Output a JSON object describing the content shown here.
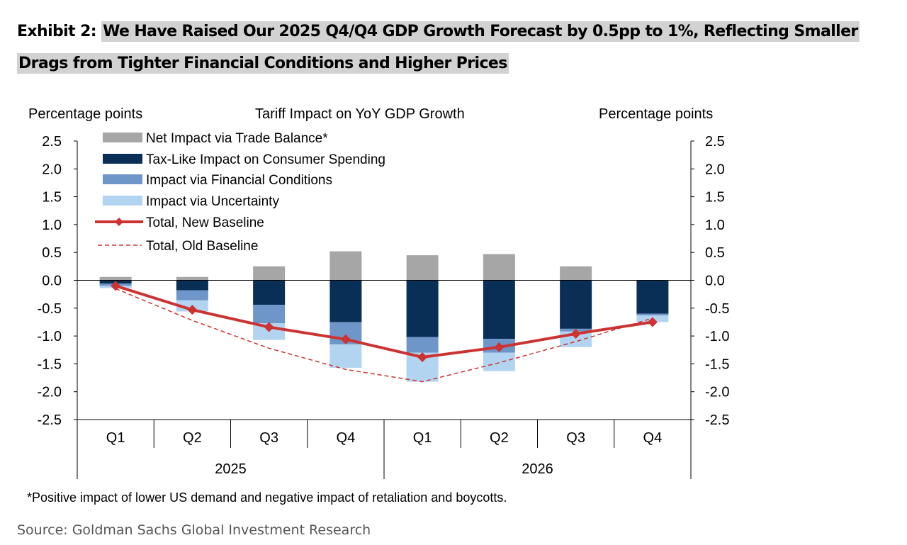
{
  "title": {
    "prefix": "Exhibit 2:",
    "text": "We Have Raised Our 2025 Q4/Q4 GDP Growth Forecast by 0.5pp to 1%, Reflecting Smaller Drags from Tighter Financial Conditions and Higher Prices"
  },
  "footnote": "*Positive impact of lower US demand and negative impact of retaliation and boycotts.",
  "source": "Source: Goldman Sachs Global Investment Research",
  "chart_data": {
    "type": "bar",
    "title": "Tariff Impact on YoY GDP Growth",
    "ylabel_left": "Percentage points",
    "ylabel_right": "Percentage points",
    "ylim": [
      -2.5,
      2.5
    ],
    "yticks": [
      "2.5",
      "2.0",
      "1.5",
      "1.0",
      "0.5",
      "0.0",
      "-0.5",
      "-1.0",
      "-1.5",
      "-2.0",
      "-2.5"
    ],
    "categories": [
      "Q1",
      "Q2",
      "Q3",
      "Q4",
      "Q1",
      "Q2",
      "Q3",
      "Q4"
    ],
    "years": [
      "2025",
      "2026"
    ],
    "series": [
      {
        "name": "Net Impact via Trade Balance*",
        "color": "#a6a6a6",
        "values": [
          0.06,
          0.06,
          0.25,
          0.52,
          0.45,
          0.47,
          0.25,
          0.0
        ]
      },
      {
        "name": "Tax-Like Impact on Consumer Spending",
        "color": "#0a2f57",
        "values": [
          -0.06,
          -0.18,
          -0.44,
          -0.75,
          -1.02,
          -1.05,
          -0.87,
          -0.6
        ]
      },
      {
        "name": "Impact via Financial Conditions",
        "color": "#6e96c9",
        "values": [
          -0.04,
          -0.18,
          -0.33,
          -0.4,
          -0.28,
          -0.25,
          -0.05,
          -0.03
        ]
      },
      {
        "name": "Impact via Uncertainty",
        "color": "#b3d4f1",
        "values": [
          -0.04,
          -0.2,
          -0.3,
          -0.42,
          -0.52,
          -0.33,
          -0.28,
          -0.12
        ]
      }
    ],
    "lines": [
      {
        "name": "Total, New Baseline",
        "color": "#cc3333",
        "style": "solid-diamond",
        "values": [
          -0.1,
          -0.53,
          -0.84,
          -1.06,
          -1.38,
          -1.2,
          -0.96,
          -0.75
        ]
      },
      {
        "name": "Total, Old Baseline",
        "color": "#cc3333",
        "style": "dashed",
        "values": [
          -0.15,
          -0.72,
          -1.22,
          -1.6,
          -1.82,
          -1.48,
          -1.1,
          -0.68
        ]
      }
    ],
    "legend_position": "top-left",
    "grid": false
  }
}
